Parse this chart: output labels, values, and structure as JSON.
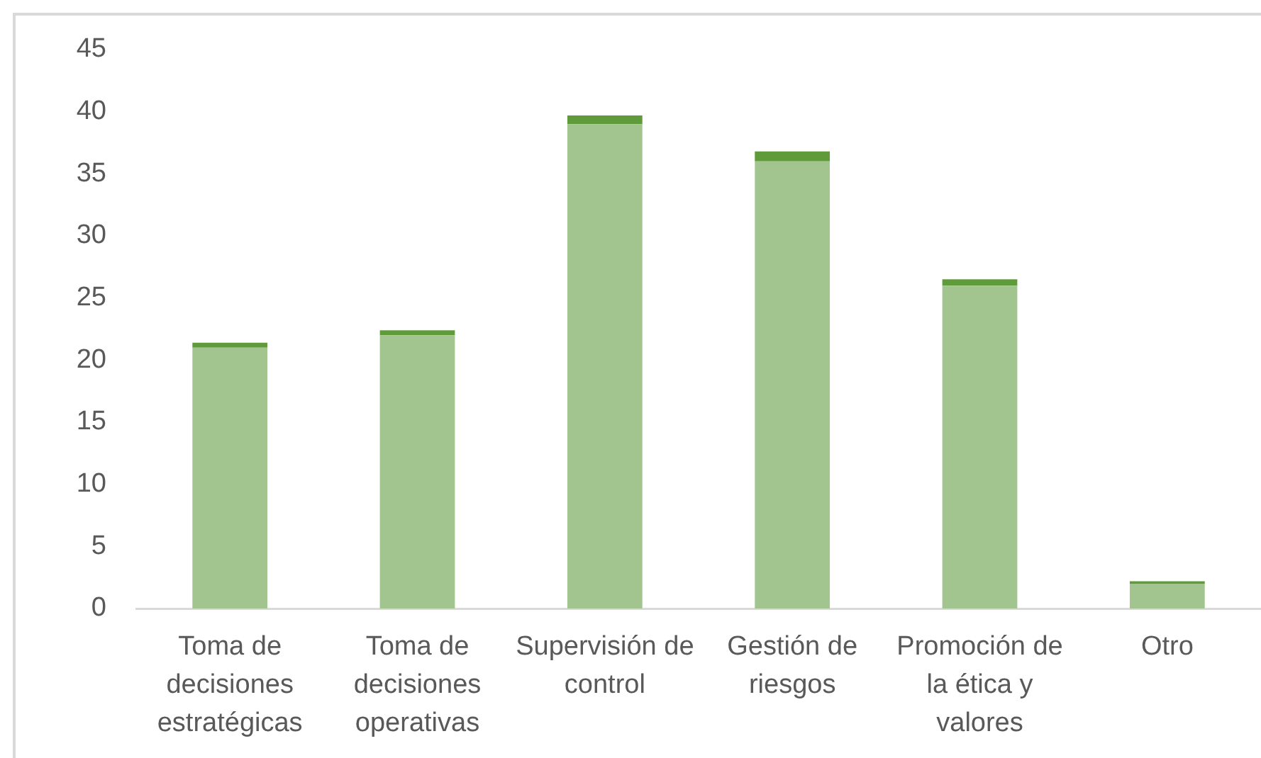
{
  "chart_data": {
    "type": "bar",
    "categories": [
      "Toma de decisiones estratégicas",
      "Toma de decisiones operativas",
      "Supervisión de control",
      "Gestión de riesgos",
      "Promoción de la ética y valores",
      "Otro"
    ],
    "series": [
      {
        "color": "#a2c48f",
        "values": [
          21,
          22,
          39,
          36,
          26,
          2
        ]
      },
      {
        "color": "#5f9a3b",
        "values": [
          0.4,
          0.4,
          0.7,
          0.8,
          0.5,
          0.2
        ]
      }
    ],
    "stacked": true,
    "ylim": [
      0,
      45
    ],
    "yticks": [
      0,
      5,
      10,
      15,
      20,
      25,
      30,
      35,
      40,
      45
    ]
  }
}
